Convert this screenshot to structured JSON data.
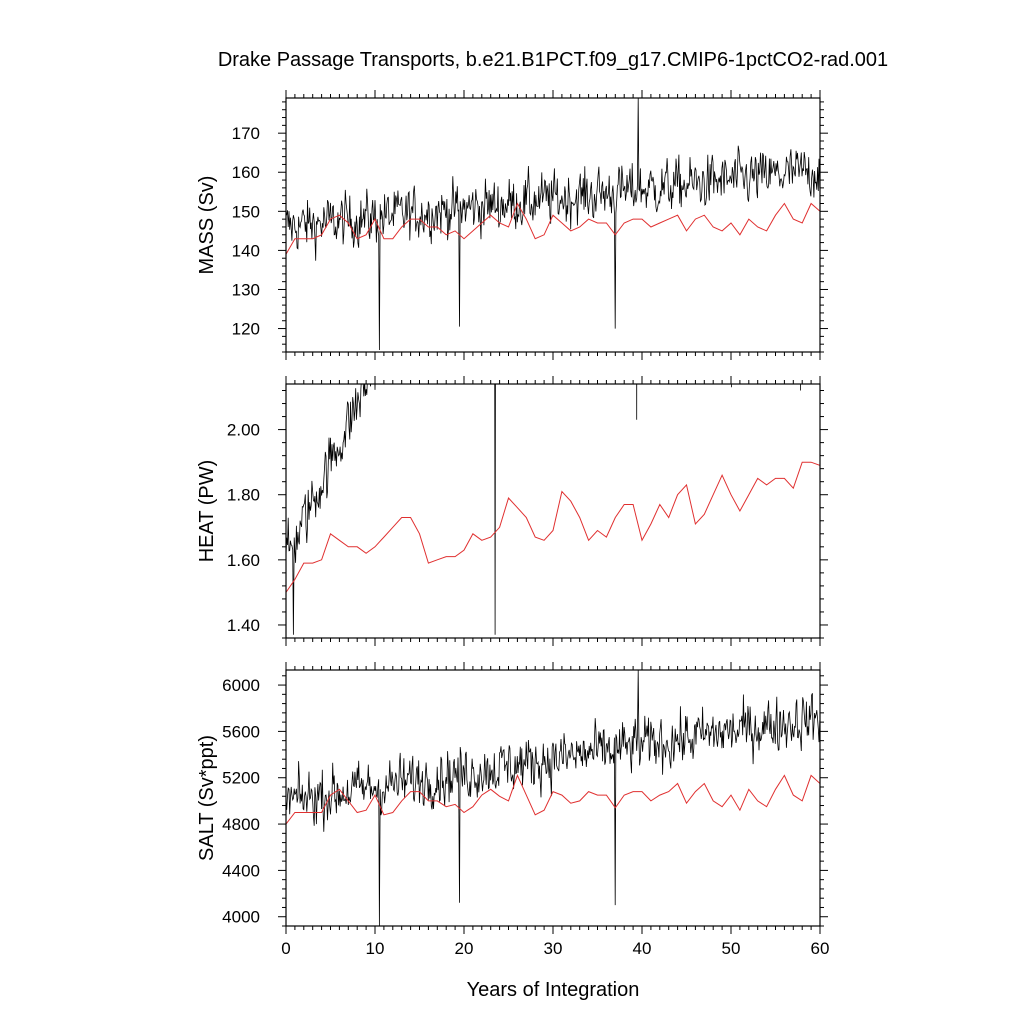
{
  "figure": {
    "title": "Drake Passage Transports, b.e21.B1PCT.f09_g17.CMIP6-1pctCO2-rad.001",
    "xlabel": "Years of Integration"
  },
  "chart_data": [
    {
      "type": "line",
      "ylabel": "MASS (Sv)",
      "xlim": [
        0,
        60
      ],
      "ylim": [
        114,
        179
      ],
      "x_ticks": [
        "0",
        "10",
        "20",
        "30",
        "40",
        "50",
        "60"
      ],
      "y_ticks": [
        "120",
        "130",
        "140",
        "150",
        "160",
        "170"
      ],
      "y_tick_values": [
        120,
        130,
        140,
        150,
        160,
        170
      ],
      "series": [
        {
          "kind": "monthly",
          "color": "#000000",
          "x_start": 0,
          "x_step": 0.0833,
          "mean": 146,
          "noise": 8.5,
          "trend": 0.02,
          "extremes": [
            [
              10.5,
              114.5
            ],
            [
              39.6,
              179
            ],
            [
              19.5,
              120.5
            ],
            [
              37,
              120
            ]
          ]
        },
        {
          "kind": "annual",
          "color": "#e03030",
          "x": [
            0,
            1,
            2,
            3,
            4,
            5,
            6,
            7,
            8,
            9,
            10,
            11,
            12,
            13,
            14,
            15,
            16,
            17,
            18,
            19,
            20,
            21,
            22,
            23,
            24,
            25,
            26,
            27,
            28,
            29,
            30,
            31,
            32,
            33,
            34,
            35,
            36,
            37,
            38,
            39,
            40,
            41,
            42,
            43,
            44,
            45,
            46,
            47,
            48,
            49,
            50,
            51,
            52,
            53,
            54,
            55,
            56,
            57,
            58,
            59,
            60
          ],
          "y": [
            139,
            143,
            143,
            143,
            144,
            148,
            149,
            147,
            143,
            144,
            148,
            143,
            143,
            146,
            148,
            148,
            146,
            146,
            144,
            145,
            143,
            145,
            147,
            149,
            147,
            146,
            152,
            148,
            143,
            144,
            149,
            147,
            145,
            146,
            148,
            147,
            147,
            144,
            147,
            148,
            148,
            146,
            147,
            148,
            149,
            145,
            148,
            149,
            146,
            145,
            147,
            144,
            148,
            146,
            145,
            149,
            152,
            148,
            147,
            152,
            150
          ]
        }
      ]
    },
    {
      "type": "line",
      "ylabel": "HEAT (PW)",
      "xlim": [
        0,
        60
      ],
      "ylim": [
        1.36,
        2.14
      ],
      "x_ticks": [
        "0",
        "10",
        "20",
        "30",
        "40",
        "50",
        "60"
      ],
      "y_ticks": [
        "1.40",
        "1.60",
        "1.80",
        "2.00"
      ],
      "y_tick_values": [
        1.4,
        1.6,
        1.8,
        2.0
      ],
      "series": [
        {
          "kind": "monthly",
          "color": "#000000",
          "x_start": 0,
          "x_step": 0.0833,
          "mean": 1.6,
          "noise": 0.11,
          "trend": 0.005,
          "extremes": [
            [
              0.8,
              1.37
            ],
            [
              23.5,
              1.37
            ],
            [
              50.1,
              2.13
            ],
            [
              57.8,
              2.12
            ],
            [
              6.4,
              1.96
            ],
            [
              39.4,
              2.03
            ]
          ]
        },
        {
          "kind": "annual",
          "color": "#e03030",
          "x": [
            0,
            1,
            2,
            3,
            4,
            5,
            6,
            7,
            8,
            9,
            10,
            11,
            12,
            13,
            14,
            15,
            16,
            17,
            18,
            19,
            20,
            21,
            22,
            23,
            24,
            25,
            26,
            27,
            28,
            29,
            30,
            31,
            32,
            33,
            34,
            35,
            36,
            37,
            38,
            39,
            40,
            41,
            42,
            43,
            44,
            45,
            46,
            47,
            48,
            49,
            50,
            51,
            52,
            53,
            54,
            55,
            56,
            57,
            58,
            59,
            60
          ],
          "y": [
            1.5,
            1.54,
            1.59,
            1.59,
            1.6,
            1.68,
            1.66,
            1.64,
            1.64,
            1.62,
            1.64,
            1.67,
            1.7,
            1.73,
            1.73,
            1.68,
            1.59,
            1.6,
            1.61,
            1.61,
            1.63,
            1.68,
            1.66,
            1.67,
            1.7,
            1.79,
            1.76,
            1.73,
            1.67,
            1.66,
            1.69,
            1.81,
            1.78,
            1.73,
            1.66,
            1.69,
            1.67,
            1.73,
            1.77,
            1.77,
            1.66,
            1.71,
            1.77,
            1.73,
            1.8,
            1.83,
            1.71,
            1.74,
            1.8,
            1.86,
            1.8,
            1.75,
            1.8,
            1.85,
            1.83,
            1.85,
            1.85,
            1.82,
            1.9,
            1.9,
            1.89
          ]
        }
      ]
    },
    {
      "type": "line",
      "ylabel": "SALT (Sv*ppt)",
      "xlim": [
        0,
        60
      ],
      "ylim": [
        3920,
        6130
      ],
      "x_ticks": [
        "0",
        "10",
        "20",
        "30",
        "40",
        "50",
        "60"
      ],
      "y_ticks": [
        "4000",
        "4400",
        "4800",
        "5200",
        "5600",
        "6000"
      ],
      "y_tick_values": [
        4000,
        4400,
        4800,
        5200,
        5600,
        6000
      ],
      "series": [
        {
          "kind": "monthly",
          "color": "#000000",
          "x_start": 0,
          "x_step": 0.0833,
          "mean": 5000,
          "noise": 290,
          "trend": 1,
          "extremes": [
            [
              10.5,
              3920
            ],
            [
              39.6,
              6130
            ],
            [
              19.5,
              4120
            ],
            [
              37,
              4100
            ]
          ]
        },
        {
          "kind": "annual",
          "color": "#e03030",
          "x": [
            0,
            1,
            2,
            3,
            4,
            5,
            6,
            7,
            8,
            9,
            10,
            11,
            12,
            13,
            14,
            15,
            16,
            17,
            18,
            19,
            20,
            21,
            22,
            23,
            24,
            25,
            26,
            27,
            28,
            29,
            30,
            31,
            32,
            33,
            34,
            35,
            36,
            37,
            38,
            39,
            40,
            41,
            42,
            43,
            44,
            45,
            46,
            47,
            48,
            49,
            50,
            51,
            52,
            53,
            54,
            55,
            56,
            57,
            58,
            59,
            60
          ],
          "y": [
            4800,
            4900,
            4900,
            4900,
            4900,
            5050,
            5100,
            5000,
            4900,
            4920,
            5050,
            4880,
            4900,
            5000,
            5080,
            5080,
            5000,
            5000,
            4950,
            4970,
            4900,
            4950,
            5050,
            5100,
            5040,
            5000,
            5220,
            5050,
            4880,
            4920,
            5080,
            5050,
            4980,
            5000,
            5080,
            5050,
            5050,
            4940,
            5050,
            5080,
            5080,
            5000,
            5050,
            5080,
            5150,
            4980,
            5080,
            5150,
            5000,
            4950,
            5050,
            4920,
            5100,
            5000,
            4950,
            5100,
            5220,
            5050,
            5000,
            5220,
            5150
          ]
        }
      ]
    }
  ]
}
